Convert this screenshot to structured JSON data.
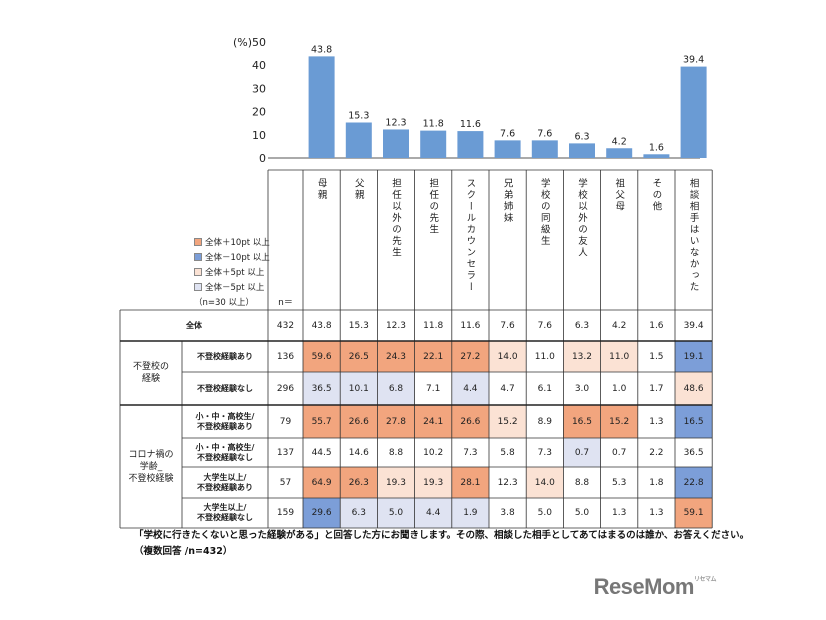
{
  "chart_data": {
    "type": "bar",
    "unit_label": "(%)",
    "ylim": [
      0,
      50
    ],
    "yticks": [
      0,
      10,
      20,
      30,
      40,
      50
    ],
    "bar_color": "#6a9bd4",
    "categories": [
      "母親",
      "父親",
      "担任以外の先生",
      "担任の先生",
      "スクールカウンセラー",
      "兄弟姉妹",
      "学校の同級生",
      "学校以外の友人",
      "祖父母",
      "その他",
      "相談相手はいなかった"
    ],
    "values": [
      43.8,
      15.3,
      12.3,
      11.8,
      11.6,
      7.6,
      7.6,
      6.3,
      4.2,
      1.6,
      39.4
    ]
  },
  "table": {
    "n_header": "n＝",
    "colors": {
      "plus10": "#f2a57e",
      "minus10": "#7c9ed8",
      "plus5": "#fbe2d4",
      "minus5": "#dfe3f2"
    },
    "legend": [
      {
        "label": "全体＋10pt 以上",
        "key": "plus10"
      },
      {
        "label": "全体－10pt 以上",
        "key": "minus10"
      },
      {
        "label": "全体＋5pt 以上",
        "key": "plus5"
      },
      {
        "label": "全体－5pt 以上",
        "key": "minus5"
      }
    ],
    "legend_note": "（n=30 以上）",
    "groups": [
      {
        "label": "不登校の\n経験",
        "rows": [
          1,
          2
        ]
      },
      {
        "label": "コロナ禍の\n学齢_\n不登校経験",
        "rows": [
          3,
          4,
          5,
          6
        ]
      }
    ],
    "rows": [
      {
        "label": "全体",
        "n": "432",
        "values": [
          "43.8",
          "15.3",
          "12.3",
          "11.8",
          "11.6",
          "7.6",
          "7.6",
          "6.3",
          "4.2",
          "1.6",
          "39.4"
        ],
        "marks": [
          "",
          "",
          "",
          "",
          "",
          "",
          "",
          "",
          "",
          "",
          ""
        ]
      },
      {
        "label": "不登校経験あり",
        "n": "136",
        "values": [
          "59.6",
          "26.5",
          "24.3",
          "22.1",
          "27.2",
          "14.0",
          "11.0",
          "13.2",
          "11.0",
          "1.5",
          "19.1"
        ],
        "marks": [
          "plus10",
          "plus10",
          "plus10",
          "plus10",
          "plus10",
          "plus5",
          "",
          "plus5",
          "plus5",
          "",
          "minus10"
        ]
      },
      {
        "label": "不登校経験なし",
        "n": "296",
        "values": [
          "36.5",
          "10.1",
          "6.8",
          "7.1",
          "4.4",
          "4.7",
          "6.1",
          "3.0",
          "1.0",
          "1.7",
          "48.6"
        ],
        "marks": [
          "minus5",
          "minus5",
          "minus5",
          "",
          "minus5",
          "",
          "",
          "",
          "",
          "",
          "plus5"
        ]
      },
      {
        "label": "小・中・高校生/\n不登校経験あり",
        "n": "79",
        "values": [
          "55.7",
          "26.6",
          "27.8",
          "24.1",
          "26.6",
          "15.2",
          "8.9",
          "16.5",
          "15.2",
          "1.3",
          "16.5"
        ],
        "marks": [
          "plus10",
          "plus10",
          "plus10",
          "plus10",
          "plus10",
          "plus5",
          "",
          "plus10",
          "plus10",
          "",
          "minus10"
        ]
      },
      {
        "label": "小・中・高校生/\n不登校経験なし",
        "n": "137",
        "values": [
          "44.5",
          "14.6",
          "8.8",
          "10.2",
          "7.3",
          "5.8",
          "7.3",
          "0.7",
          "0.7",
          "2.2",
          "36.5"
        ],
        "marks": [
          "",
          "",
          "",
          "",
          "",
          "",
          "",
          "minus5",
          "",
          "",
          ""
        ]
      },
      {
        "label": "大学生以上/\n不登校経験あり",
        "n": "57",
        "values": [
          "64.9",
          "26.3",
          "19.3",
          "19.3",
          "28.1",
          "12.3",
          "14.0",
          "8.8",
          "5.3",
          "1.8",
          "22.8"
        ],
        "marks": [
          "plus10",
          "plus10",
          "plus5",
          "plus5",
          "plus10",
          "",
          "plus5",
          "",
          "",
          "",
          "minus10"
        ]
      },
      {
        "label": "大学生以上/\n不登校経験なし",
        "n": "159",
        "values": [
          "29.6",
          "6.3",
          "5.0",
          "4.4",
          "1.9",
          "3.8",
          "5.0",
          "5.0",
          "1.3",
          "1.3",
          "59.1"
        ],
        "marks": [
          "minus10",
          "minus5",
          "minus5",
          "minus5",
          "minus5",
          "",
          "",
          "",
          "",
          "",
          "plus10"
        ]
      }
    ]
  },
  "note_line1": "「学校に行きたくないと思った経験がある」と回答した方にお聞きします。その際、相談した相手としてあてはまるのは誰か、お答えください。",
  "note_line2": "（複数回答 /n=432）",
  "logo_text": "ReseMom",
  "logo_small": "リセマム"
}
